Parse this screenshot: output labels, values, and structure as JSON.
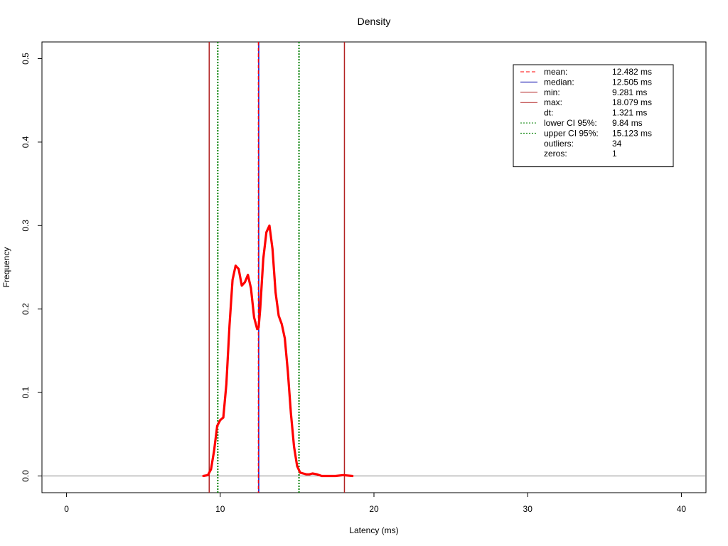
{
  "chart_data": {
    "type": "line",
    "title": "Density",
    "xlabel": "Latency (ms)",
    "ylabel": "Frequency",
    "xlim": [
      -1.6,
      41.6
    ],
    "ylim": [
      -0.02,
      0.52
    ],
    "xticks": [
      0,
      10,
      20,
      30,
      40
    ],
    "xtick_labels": [
      "0",
      "10",
      "20",
      "30",
      "40"
    ],
    "yticks": [
      0.0,
      0.1,
      0.2,
      0.3,
      0.4,
      0.5
    ],
    "ytick_labels": [
      "0.0",
      "0.1",
      "0.2",
      "0.3",
      "0.4",
      "0.5"
    ],
    "grid": false,
    "legend_position": "top-right",
    "series": [
      {
        "color": "#ff0000",
        "x": [
          8.9,
          9.2,
          9.4,
          9.6,
          9.8,
          10.0,
          10.2,
          10.4,
          10.6,
          10.8,
          11.0,
          11.2,
          11.4,
          11.6,
          11.8,
          12.0,
          12.2,
          12.4,
          12.5,
          12.6,
          12.8,
          13.0,
          13.2,
          13.4,
          13.6,
          13.8,
          14.0,
          14.2,
          14.4,
          14.6,
          14.8,
          15.0,
          15.2,
          15.4,
          15.6,
          15.8,
          16.0,
          16.3,
          16.6,
          17.0,
          17.5,
          18.0,
          18.6
        ],
        "y": [
          0.0,
          0.001,
          0.008,
          0.03,
          0.06,
          0.067,
          0.07,
          0.11,
          0.18,
          0.235,
          0.252,
          0.248,
          0.228,
          0.232,
          0.241,
          0.225,
          0.19,
          0.176,
          0.178,
          0.2,
          0.26,
          0.292,
          0.3,
          0.272,
          0.22,
          0.192,
          0.182,
          0.165,
          0.125,
          0.075,
          0.035,
          0.012,
          0.004,
          0.003,
          0.002,
          0.002,
          0.003,
          0.002,
          0.0,
          0.0,
          0.0,
          0.001,
          0.0
        ]
      }
    ],
    "vlines": [
      {
        "label": "mean:",
        "value": 12.482,
        "color": "#ff0000",
        "style": "dashed"
      },
      {
        "label": "median:",
        "value": 12.505,
        "color": "#0000cc",
        "style": "solid"
      },
      {
        "label": "min:",
        "value": 9.281,
        "color": "#b22222",
        "style": "solid"
      },
      {
        "label": "max:",
        "value": 18.079,
        "color": "#b22222",
        "style": "solid"
      },
      {
        "label": "lower CI 95%:",
        "value": 9.84,
        "color": "#008000",
        "style": "dotted"
      },
      {
        "label": "upper CI 95%:",
        "value": 15.123,
        "color": "#008000",
        "style": "dotted"
      }
    ],
    "hline": {
      "value": 0,
      "color": "#808080"
    },
    "legend": [
      {
        "line": "dashed",
        "color": "#ff0000",
        "label": "mean:",
        "value": "12.482 ms"
      },
      {
        "line": "solid",
        "color": "#0000aa",
        "label": "median:",
        "value": "12.505 ms"
      },
      {
        "line": "solid",
        "color": "#b22222",
        "label": "min:",
        "value": "9.281 ms"
      },
      {
        "line": "solid",
        "color": "#b22222",
        "label": "max:",
        "value": "18.079 ms"
      },
      {
        "line": "none",
        "color": "",
        "label": "dt:",
        "value": "1.321 ms"
      },
      {
        "line": "dotted",
        "color": "#008000",
        "label": "lower CI 95%:",
        "value": "9.84 ms"
      },
      {
        "line": "dotted",
        "color": "#008000",
        "label": "upper CI 95%:",
        "value": "15.123 ms"
      },
      {
        "line": "none",
        "color": "",
        "label": "outliers:",
        "value": "34"
      },
      {
        "line": "none",
        "color": "",
        "label": "zeros:",
        "value": "1"
      }
    ]
  }
}
